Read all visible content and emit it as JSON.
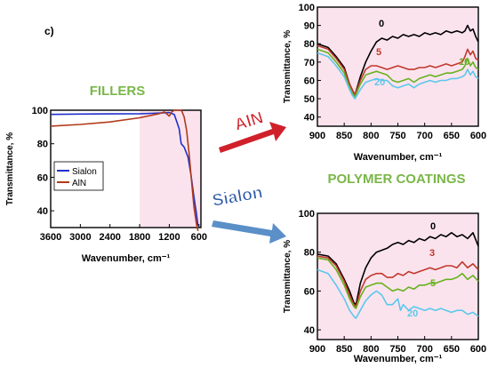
{
  "panel_label": "c)",
  "section_labels": {
    "fillers": "FILLERS",
    "polymer_coatings": "POLYMER COATINGS"
  },
  "arrow_labels": {
    "aln": "AlN",
    "sialon": "Sialon"
  },
  "colors": {
    "green_heading": "#7ab648",
    "red_arrow": "#d0202a",
    "blue_arrow": "#5b8fc8",
    "sialon_label": "#2e5aa8",
    "black": "#000000",
    "red": "#c0392b",
    "green": "#66b21f",
    "cyan": "#5bc8ea",
    "blue": "#1f2fc8",
    "brown": "#b03a1a"
  },
  "chart_data": [
    {
      "id": "fillers",
      "type": "line",
      "title": "",
      "xlabel": "Wavenumber, cm⁻¹",
      "ylabel": "Transmittance, %",
      "xlim": [
        3600,
        560
      ],
      "ylim": [
        30,
        100
      ],
      "xticks": [
        3600,
        3000,
        2400,
        1800,
        1200,
        600
      ],
      "yticks": [
        40,
        60,
        80,
        100
      ],
      "legend": {
        "position": "center-left",
        "entries": [
          "Sialon",
          "AlN"
        ]
      },
      "series": [
        {
          "name": "Sialon",
          "color": "#1f2fc8",
          "x": [
            3600,
            3000,
            2400,
            1800,
            1400,
            1200,
            1100,
            1000,
            960,
            900,
            820,
            760,
            700,
            650,
            620
          ],
          "y": [
            97.5,
            97.7,
            97.8,
            97.9,
            98.3,
            98.6,
            97.5,
            89,
            80,
            78,
            72,
            61,
            48,
            38,
            31
          ]
        },
        {
          "name": "AlN",
          "color": "#b03a1a",
          "x": [
            3600,
            3000,
            2400,
            1800,
            1400,
            1300,
            1200,
            1150,
            1100,
            1000,
            950,
            900,
            850,
            800,
            750,
            700,
            650,
            620
          ],
          "y": [
            90.5,
            91.5,
            93,
            95.5,
            98,
            99,
            96.5,
            99,
            100,
            100,
            99.7,
            96,
            88,
            74,
            58,
            42,
            32,
            28
          ]
        }
      ]
    },
    {
      "id": "aln_coatings",
      "type": "line",
      "title": "",
      "xlabel": "Wavenumber, cm⁻¹",
      "ylabel": "Transmittance, %",
      "xlim": [
        900,
        600
      ],
      "ylim": [
        35,
        100
      ],
      "xticks": [
        900,
        850,
        800,
        750,
        700,
        650,
        600
      ],
      "yticks": [
        40,
        50,
        60,
        70,
        80,
        90,
        100
      ],
      "series": [
        {
          "name": "0",
          "color": "#000000",
          "x": [
            900,
            880,
            865,
            850,
            840,
            835,
            830,
            820,
            810,
            800,
            790,
            780,
            770,
            760,
            750,
            740,
            730,
            720,
            710,
            700,
            690,
            680,
            670,
            660,
            650,
            640,
            630,
            625,
            620,
            615,
            610,
            605,
            600
          ],
          "y": [
            80,
            78,
            73,
            67,
            58,
            55,
            52,
            62,
            70,
            76,
            81,
            83,
            82,
            84,
            83,
            85,
            84,
            85,
            84,
            86,
            85,
            86,
            85,
            87,
            86,
            87,
            86,
            87,
            90,
            87,
            88,
            84,
            81
          ]
        },
        {
          "name": "5",
          "color": "#c0392b",
          "x": [
            900,
            880,
            865,
            850,
            840,
            835,
            830,
            820,
            810,
            800,
            790,
            780,
            770,
            760,
            750,
            740,
            730,
            720,
            710,
            700,
            690,
            680,
            670,
            660,
            650,
            640,
            630,
            625,
            620,
            615,
            610,
            605,
            600
          ],
          "y": [
            79,
            77,
            72,
            66,
            58,
            55,
            52,
            60,
            66,
            68,
            68,
            67,
            66,
            67,
            68,
            67,
            66,
            66,
            67,
            67,
            68,
            67,
            68,
            69,
            68,
            69,
            70,
            73,
            77,
            74,
            76,
            72,
            71
          ]
        },
        {
          "name": "10",
          "color": "#66b21f",
          "x": [
            900,
            880,
            865,
            850,
            840,
            835,
            830,
            820,
            810,
            800,
            790,
            780,
            770,
            760,
            750,
            740,
            730,
            720,
            710,
            700,
            690,
            680,
            670,
            660,
            650,
            640,
            630,
            625,
            620,
            615,
            610,
            605,
            600
          ],
          "y": [
            77,
            75,
            70,
            64,
            56,
            53,
            51,
            58,
            63,
            64,
            65,
            64,
            63,
            60,
            59,
            60,
            61,
            59,
            61,
            62,
            63,
            62,
            63,
            64,
            64,
            65,
            66,
            68,
            72,
            68,
            70,
            67,
            66
          ]
        },
        {
          "name": "20",
          "color": "#5bc8ea",
          "x": [
            900,
            880,
            865,
            850,
            840,
            835,
            830,
            820,
            810,
            800,
            790,
            780,
            770,
            760,
            750,
            740,
            730,
            720,
            710,
            700,
            690,
            680,
            670,
            660,
            650,
            640,
            630,
            625,
            620,
            615,
            610,
            605,
            600
          ],
          "y": [
            75,
            73,
            68,
            62,
            55,
            52,
            50,
            55,
            59,
            60,
            61,
            60,
            60,
            57,
            56,
            57,
            58,
            56,
            58,
            59,
            60,
            59,
            60,
            60,
            61,
            61,
            62,
            63,
            66,
            63,
            65,
            62,
            61
          ]
        }
      ],
      "series_labels": [
        "0",
        "5",
        "10",
        "20"
      ]
    },
    {
      "id": "sialon_coatings",
      "type": "line",
      "title": "",
      "xlabel": "Wavenumber, cm⁻¹",
      "ylabel": "Transmittance, %",
      "xlim": [
        900,
        600
      ],
      "ylim": [
        35,
        100
      ],
      "xticks": [
        900,
        850,
        800,
        750,
        700,
        650,
        600
      ],
      "yticks": [
        40,
        60,
        80,
        100
      ],
      "series": [
        {
          "name": "0",
          "color": "#000000",
          "x": [
            900,
            880,
            865,
            850,
            840,
            832,
            828,
            820,
            810,
            800,
            790,
            780,
            770,
            760,
            750,
            740,
            730,
            720,
            710,
            700,
            690,
            680,
            670,
            660,
            650,
            640,
            630,
            620,
            610,
            600
          ],
          "y": [
            79,
            78,
            74,
            66,
            60,
            54,
            53,
            64,
            72,
            77,
            80,
            81,
            82,
            84,
            85,
            84,
            86,
            85,
            87,
            86,
            88,
            87,
            89,
            88,
            90,
            88,
            89,
            87,
            90,
            83
          ]
        },
        {
          "name": "3",
          "color": "#c0392b",
          "x": [
            900,
            880,
            865,
            850,
            840,
            832,
            828,
            820,
            810,
            800,
            790,
            780,
            770,
            760,
            750,
            740,
            730,
            720,
            710,
            700,
            690,
            680,
            670,
            660,
            650,
            640,
            630,
            620,
            610,
            600
          ],
          "y": [
            78,
            77,
            73,
            65,
            58,
            53,
            52,
            60,
            66,
            68,
            69,
            69,
            67,
            67,
            69,
            68,
            70,
            69,
            70,
            71,
            72,
            71,
            72,
            73,
            73,
            72,
            75,
            72,
            74,
            71
          ]
        },
        {
          "name": "5",
          "color": "#66b21f",
          "x": [
            900,
            880,
            865,
            850,
            840,
            832,
            828,
            820,
            810,
            800,
            790,
            780,
            770,
            760,
            750,
            740,
            730,
            720,
            710,
            700,
            690,
            680,
            670,
            660,
            650,
            640,
            630,
            620,
            610,
            600
          ],
          "y": [
            77,
            76,
            71,
            63,
            56,
            52,
            51,
            57,
            62,
            63,
            64,
            64,
            62,
            60,
            61,
            60,
            62,
            61,
            63,
            63,
            64,
            64,
            65,
            66,
            66,
            67,
            69,
            66,
            68,
            65
          ]
        },
        {
          "name": "20",
          "color": "#5bc8ea",
          "x": [
            900,
            880,
            865,
            850,
            840,
            832,
            828,
            820,
            810,
            800,
            790,
            780,
            770,
            760,
            750,
            745,
            740,
            730,
            720,
            710,
            700,
            690,
            680,
            670,
            660,
            650,
            640,
            630,
            620,
            610,
            600
          ],
          "y": [
            71,
            69,
            63,
            56,
            50,
            47,
            46,
            50,
            55,
            58,
            60,
            58,
            53,
            53,
            56,
            50,
            53,
            50,
            52,
            51,
            50,
            51,
            50,
            51,
            50,
            49,
            50,
            50,
            48,
            49,
            47
          ]
        }
      ],
      "series_labels": [
        "0",
        "3",
        "5",
        "20"
      ]
    }
  ]
}
